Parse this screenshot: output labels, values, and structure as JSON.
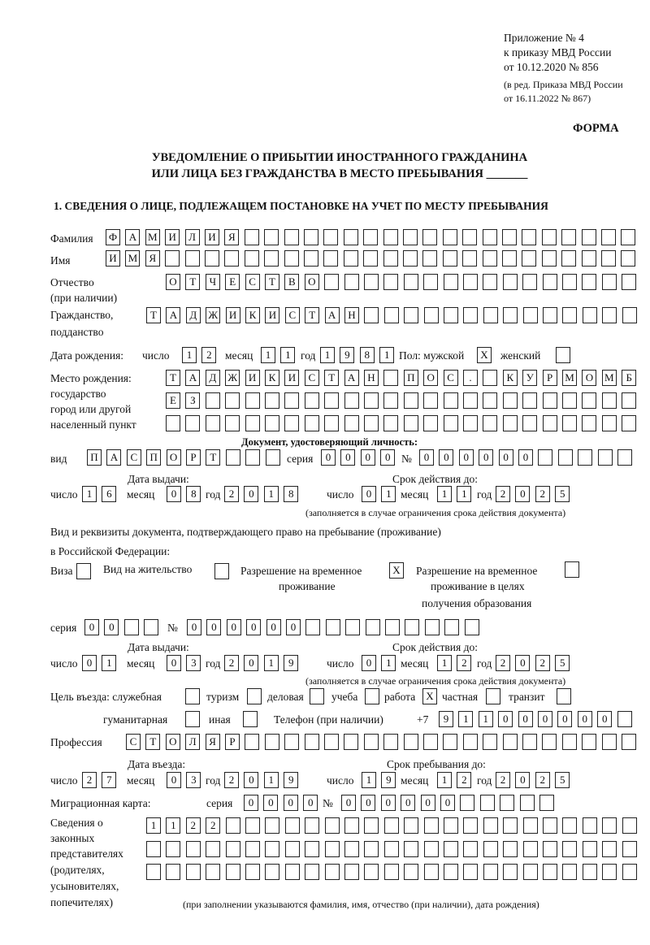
{
  "header": {
    "line1": "Приложение № 4",
    "line2": "к приказу МВД России",
    "line3": "от 10.12.2020 № 856",
    "line4": "(в ред. Приказа МВД России",
    "line5": "от 16.11.2022 № 867)",
    "forma": "ФОРМА"
  },
  "title": {
    "line1": "УВЕДОМЛЕНИЕ О ПРИБЫТИИ ИНОСТРАННОГО ГРАЖДАНИНА",
    "line2": "ИЛИ ЛИЦА БЕЗ ГРАЖДАНСТВА В МЕСТО ПРЕБЫВАНИЯ _______"
  },
  "section1": "1. СВЕДЕНИЯ О ЛИЦЕ, ПОДЛЕЖАЩЕМ ПОСТАНОВКЕ НА УЧЕТ ПО МЕСТУ ПРЕБЫВАНИЯ",
  "labels": {
    "surname": "Фамилия",
    "name": "Имя",
    "patronymic": "Отчество",
    "patronymic2": "(при наличии)",
    "citizenship": "Гражданство,",
    "citizenship2": "подданство",
    "birth_date": "Дата рождения:",
    "day": "число",
    "month": "месяц",
    "year": "год",
    "sex": "Пол: мужской",
    "female": "женский",
    "birthplace1": "Место рождения:",
    "birthplace2": "государство",
    "birthplace3": "город или другой",
    "birthplace4": "населенный пункт",
    "id_doc": "Документ, удостоверяющий личность:",
    "kind": "вид",
    "series": "серия",
    "number": "№",
    "issue_date": "Дата выдачи:",
    "valid_until": "Срок действия до:",
    "valid_note": "(заполняется в случае ограничения срока действия документа)",
    "right_doc1": "Вид и реквизиты документа, подтверждающего право на пребывание (проживание)",
    "right_doc2": "в Российской Федерации:",
    "visa": "Виза",
    "residence": "Вид на жительство",
    "trp1": "Разрешение на временное",
    "trp2": "проживание",
    "trpe1": "Разрешение на временное",
    "trpe2": "проживание в целях",
    "trpe3": "получения образования",
    "purpose": "Цель въезда: служебная",
    "tourism": "туризм",
    "business": "деловая",
    "study": "учеба",
    "work": "работа",
    "private": "частная",
    "transit": "транзит",
    "humanitarian": "гуманитарная",
    "other": "иная",
    "phone": "Телефон (при наличии)",
    "phone_prefix": "+7",
    "profession": "Профессия",
    "entry_date": "Дата въезда:",
    "stay_until": "Срок пребывания до:",
    "migration_card": "Миграционная карта:",
    "reps1": "Сведения о",
    "reps2": "законных",
    "reps3": "представителях",
    "reps4": "(родителях,",
    "reps5": "усыновителях,",
    "reps6": "попечителях)",
    "reps_note": "(при заполнении указываются фамилия, имя, отчество (при наличии), дата рождения)"
  },
  "values": {
    "surname": "ФАМИЛИЯ",
    "name": "ИМЯ",
    "patronymic": "ОТЧЕСТВО",
    "citizenship": "ТАДЖИКИСТАН",
    "birth_day": "12",
    "birth_month": "11",
    "birth_year": "1981",
    "male": "X",
    "female": "",
    "birthplace_row1": "ТАДЖИКИСТАН ПОС. КУРМОМБ",
    "birthplace_row2": "ЕЗ",
    "birthplace_row3": "",
    "id_kind": "ПАСПОРТ",
    "id_series": "0000",
    "id_number": "000000",
    "id_issue_day": "16",
    "id_issue_month": "08",
    "id_issue_year": "2018",
    "id_valid_day": "01",
    "id_valid_month": "11",
    "id_valid_year": "2025",
    "visa": "",
    "residence": "",
    "trp": "X",
    "trpe": "",
    "rd_series": "00",
    "rd_number": "000000",
    "rd_issue_day": "01",
    "rd_issue_month": "03",
    "rd_issue_year": "2019",
    "rd_valid_day": "01",
    "rd_valid_month": "12",
    "rd_valid_year": "2025",
    "p_service": "",
    "p_tourism": "",
    "p_business": "",
    "p_study": "",
    "p_work": "X",
    "p_private": "",
    "p_transit": "",
    "p_humanitarian": "",
    "p_other": "",
    "phone": "911000000",
    "profession": "СТОЛЯР",
    "entry_day": "27",
    "entry_month": "03",
    "entry_year": "2019",
    "stay_day": "19",
    "stay_month": "12",
    "stay_year": "2025",
    "mc_series": "0000",
    "mc_number": "000000",
    "reps_row1": "1122",
    "reps_row2": "",
    "reps_row3": ""
  }
}
